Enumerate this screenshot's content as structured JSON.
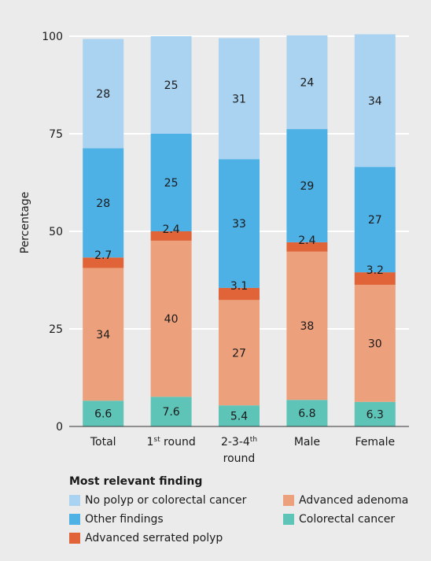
{
  "chart_data": {
    "type": "bar",
    "stacked": true,
    "categories": [
      "Total",
      "1st round",
      "2-3-4th round",
      "Male",
      "Female"
    ],
    "category_labels": [
      {
        "parts": [
          {
            "text": "Total"
          }
        ]
      },
      {
        "parts": [
          {
            "text": "1"
          },
          {
            "text": "st",
            "sup": true
          },
          {
            "text": " round"
          }
        ]
      },
      {
        "parts": [
          {
            "text": "2-3-4"
          },
          {
            "text": "th",
            "sup": true
          }
        ],
        "line2": "round"
      },
      {
        "parts": [
          {
            "text": "Male"
          }
        ]
      },
      {
        "parts": [
          {
            "text": "Female"
          }
        ]
      }
    ],
    "ylabel": "Percentage",
    "ylim": [
      0,
      100
    ],
    "yticks": [
      "0",
      "25",
      "50",
      "75",
      "100"
    ],
    "grid": true,
    "series": [
      {
        "name": "Colorectal cancer",
        "color": "#5ec4b8",
        "values": [
          6.6,
          7.6,
          5.4,
          6.8,
          6.3
        ],
        "labels": [
          "6.6",
          "7.6",
          "5.4",
          "6.8",
          "6.3"
        ]
      },
      {
        "name": "Advanced adenoma",
        "color": "#eda07c",
        "values": [
          34,
          40,
          27,
          38,
          30
        ],
        "labels": [
          "34",
          "40",
          "27",
          "38",
          "30"
        ]
      },
      {
        "name": "Advanced serrated polyp",
        "color": "#e06437",
        "values": [
          2.7,
          2.4,
          3.1,
          2.4,
          3.2
        ],
        "labels": [
          "2.7",
          "2.4",
          "3.1",
          "2.4",
          "3.2"
        ]
      },
      {
        "name": "Other findings",
        "color": "#4db1e6",
        "values": [
          28,
          25,
          33,
          29,
          27
        ],
        "labels": [
          "28",
          "25",
          "33",
          "29",
          "27"
        ]
      },
      {
        "name": "No polyp or colorectal cancer",
        "color": "#aad3f1",
        "values": [
          28,
          25,
          31,
          24,
          34
        ],
        "labels": [
          "28",
          "25",
          "31",
          "24",
          "34"
        ]
      }
    ],
    "legend": {
      "title": "Most relevant finding",
      "placement": "bottom",
      "order": [
        "No polyp or colorectal cancer",
        "Advanced adenoma",
        "Other findings",
        "Colorectal cancer",
        "Advanced serrated polyp"
      ]
    }
  }
}
